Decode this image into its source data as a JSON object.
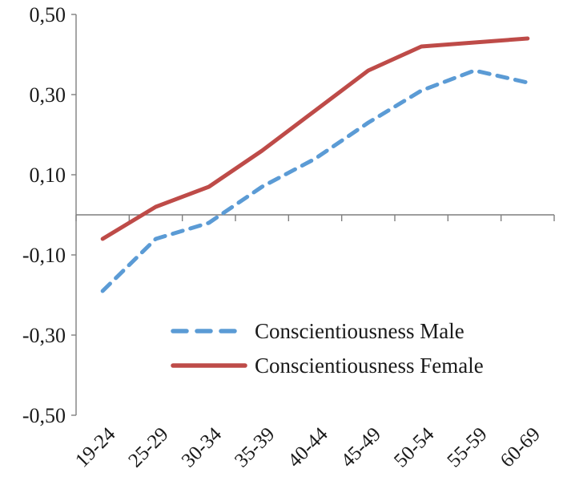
{
  "chart_data": {
    "type": "line",
    "title": "",
    "xlabel": "",
    "ylabel": "",
    "categories": [
      "19-24",
      "25-29",
      "30-34",
      "35-39",
      "40-44",
      "45-49",
      "50-54",
      "55-59",
      "60-69"
    ],
    "series": [
      {
        "name": "Conscientiousness Male",
        "color": "#5B9BD5",
        "style": "dashed",
        "values": [
          -0.19,
          -0.06,
          -0.02,
          0.07,
          0.14,
          0.23,
          0.31,
          0.36,
          0.33
        ]
      },
      {
        "name": "Conscientiousness Female",
        "color": "#BE4B48",
        "style": "solid",
        "values": [
          -0.06,
          0.02,
          0.07,
          0.16,
          0.26,
          0.36,
          0.42,
          0.43,
          0.44
        ]
      }
    ],
    "ylim": [
      -0.5,
      0.5
    ],
    "ytick_step": 0.2,
    "ytick_labels": [
      "0,50",
      "0,30",
      "0,10",
      "-0,10",
      "-0,30",
      "-0,50"
    ],
    "decimal_separator": ",",
    "grid": false,
    "legend_position": "inside-bottom-center",
    "axis_color": "#7f7f7f",
    "text_color": "#1a1a1a"
  }
}
